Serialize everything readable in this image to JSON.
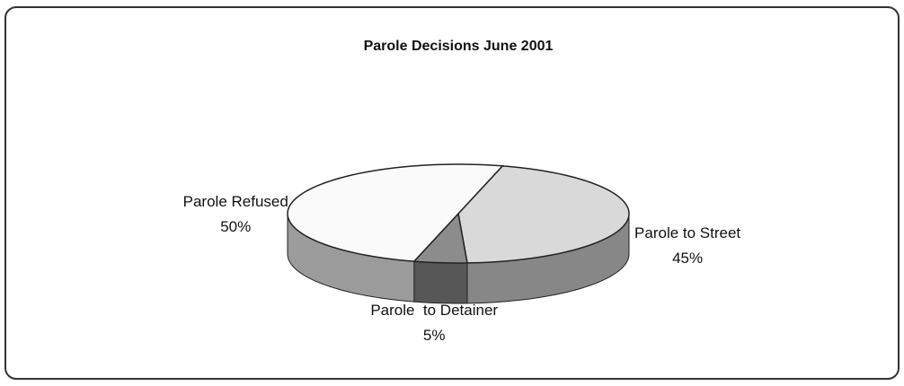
{
  "chart_data": {
    "type": "pie",
    "title": "Parole Decisions June 2001",
    "categories": [
      "Parole to Street",
      "Parole  to Detainer",
      "Parole Refused"
    ],
    "values": [
      45,
      5,
      50
    ],
    "value_labels": [
      "45%",
      "5%",
      "50%"
    ],
    "colors": [
      "#d9d9d9",
      "#8c8c8c",
      "#fafafa"
    ]
  }
}
